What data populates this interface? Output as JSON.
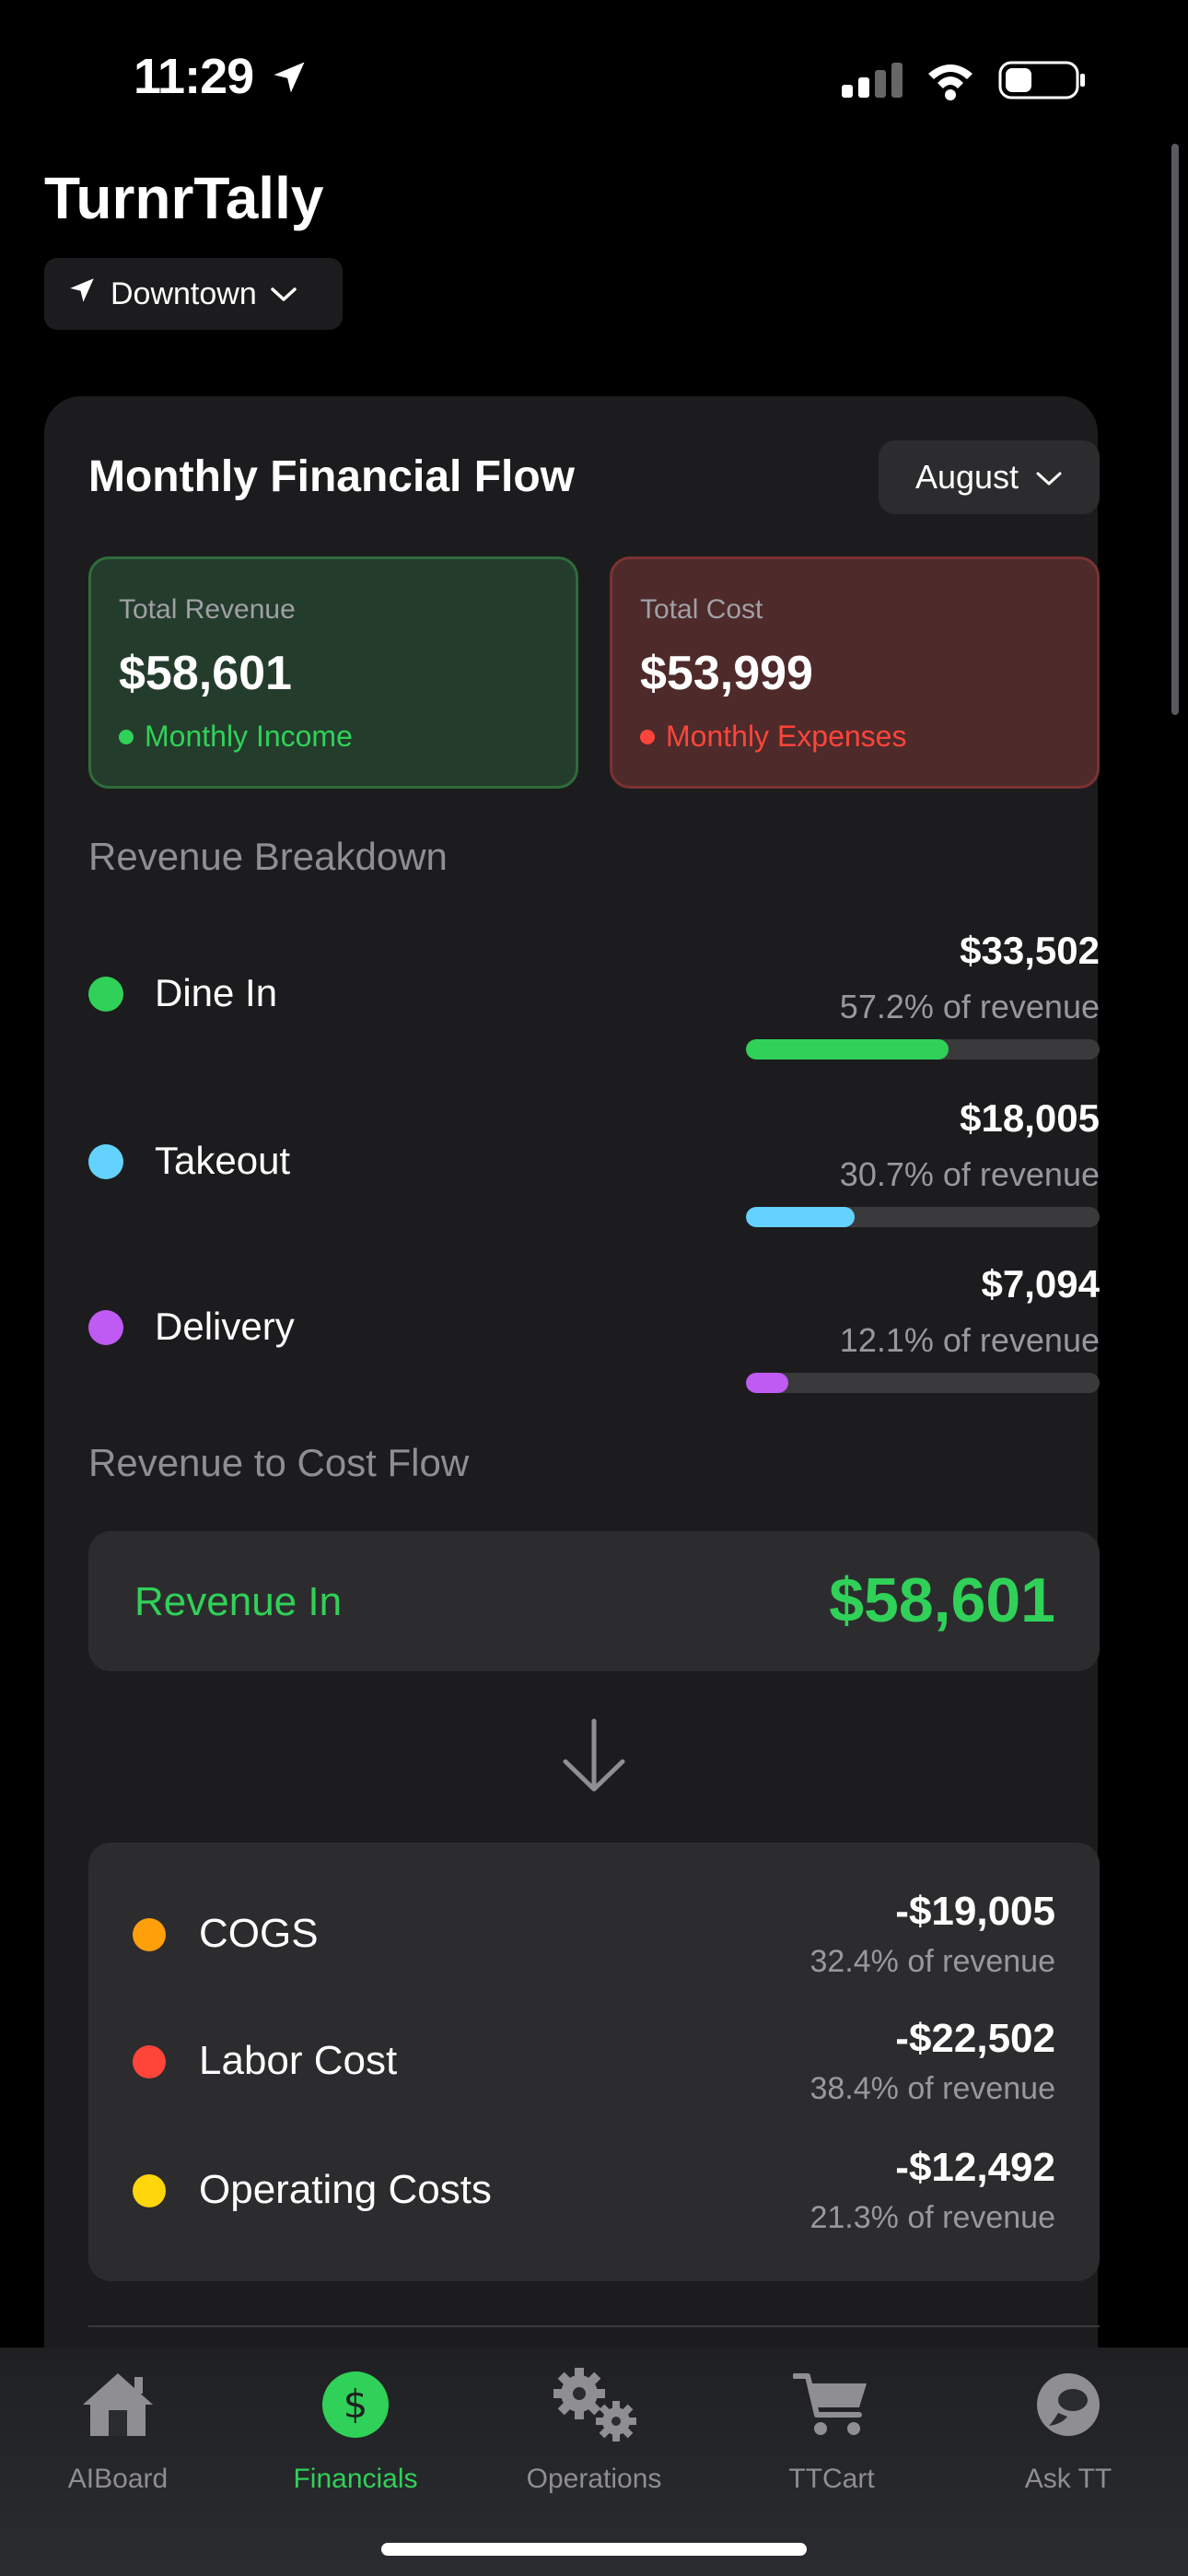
{
  "status_bar": {
    "time": "11:29"
  },
  "header": {
    "app_title": "TurnrTally",
    "location": "Downtown"
  },
  "card": {
    "title": "Monthly Financial Flow",
    "month": "August",
    "total_revenue": {
      "label": "Total Revenue",
      "value": "$58,601",
      "sub": "Monthly Income"
    },
    "total_cost": {
      "label": "Total Cost",
      "value": "$53,999",
      "sub": "Monthly Expenses"
    }
  },
  "revenue_breakdown": {
    "label": "Revenue Breakdown",
    "items": [
      {
        "name": "Dine In",
        "amount": "$33,502",
        "pct": "57.2% of revenue",
        "share": 0.572,
        "color": "#30d158"
      },
      {
        "name": "Takeout",
        "amount": "$18,005",
        "pct": "30.7% of revenue",
        "share": 0.307,
        "color": "#64d2ff"
      },
      {
        "name": "Delivery",
        "amount": "$7,094",
        "pct": "12.1% of revenue",
        "share": 0.121,
        "color": "#bf5af2"
      }
    ]
  },
  "flow": {
    "label": "Revenue to Cost Flow",
    "revenue_in_label": "Revenue In",
    "revenue_in_value": "$58,601",
    "costs": [
      {
        "name": "COGS",
        "amount": "-$19,005",
        "pct": "32.4% of revenue",
        "color": "#ff9f0a"
      },
      {
        "name": "Labor Cost",
        "amount": "-$22,502",
        "pct": "38.4% of revenue",
        "color": "#ff453a"
      },
      {
        "name": "Operating Costs",
        "amount": "-$12,492",
        "pct": "21.3% of revenue",
        "color": "#ffd60a"
      }
    ]
  },
  "tabs": [
    {
      "label": "AIBoard",
      "icon": "home-icon",
      "active": false
    },
    {
      "label": "Financials",
      "icon": "dollar-icon",
      "active": true
    },
    {
      "label": "Operations",
      "icon": "gears-icon",
      "active": false
    },
    {
      "label": "TTCart",
      "icon": "cart-icon",
      "active": false
    },
    {
      "label": "Ask TT",
      "icon": "chat-bubble-icon",
      "active": false
    }
  ],
  "colors": {
    "accent": "#30d158",
    "revenue": "#30d158",
    "cost": "#ff453a"
  }
}
